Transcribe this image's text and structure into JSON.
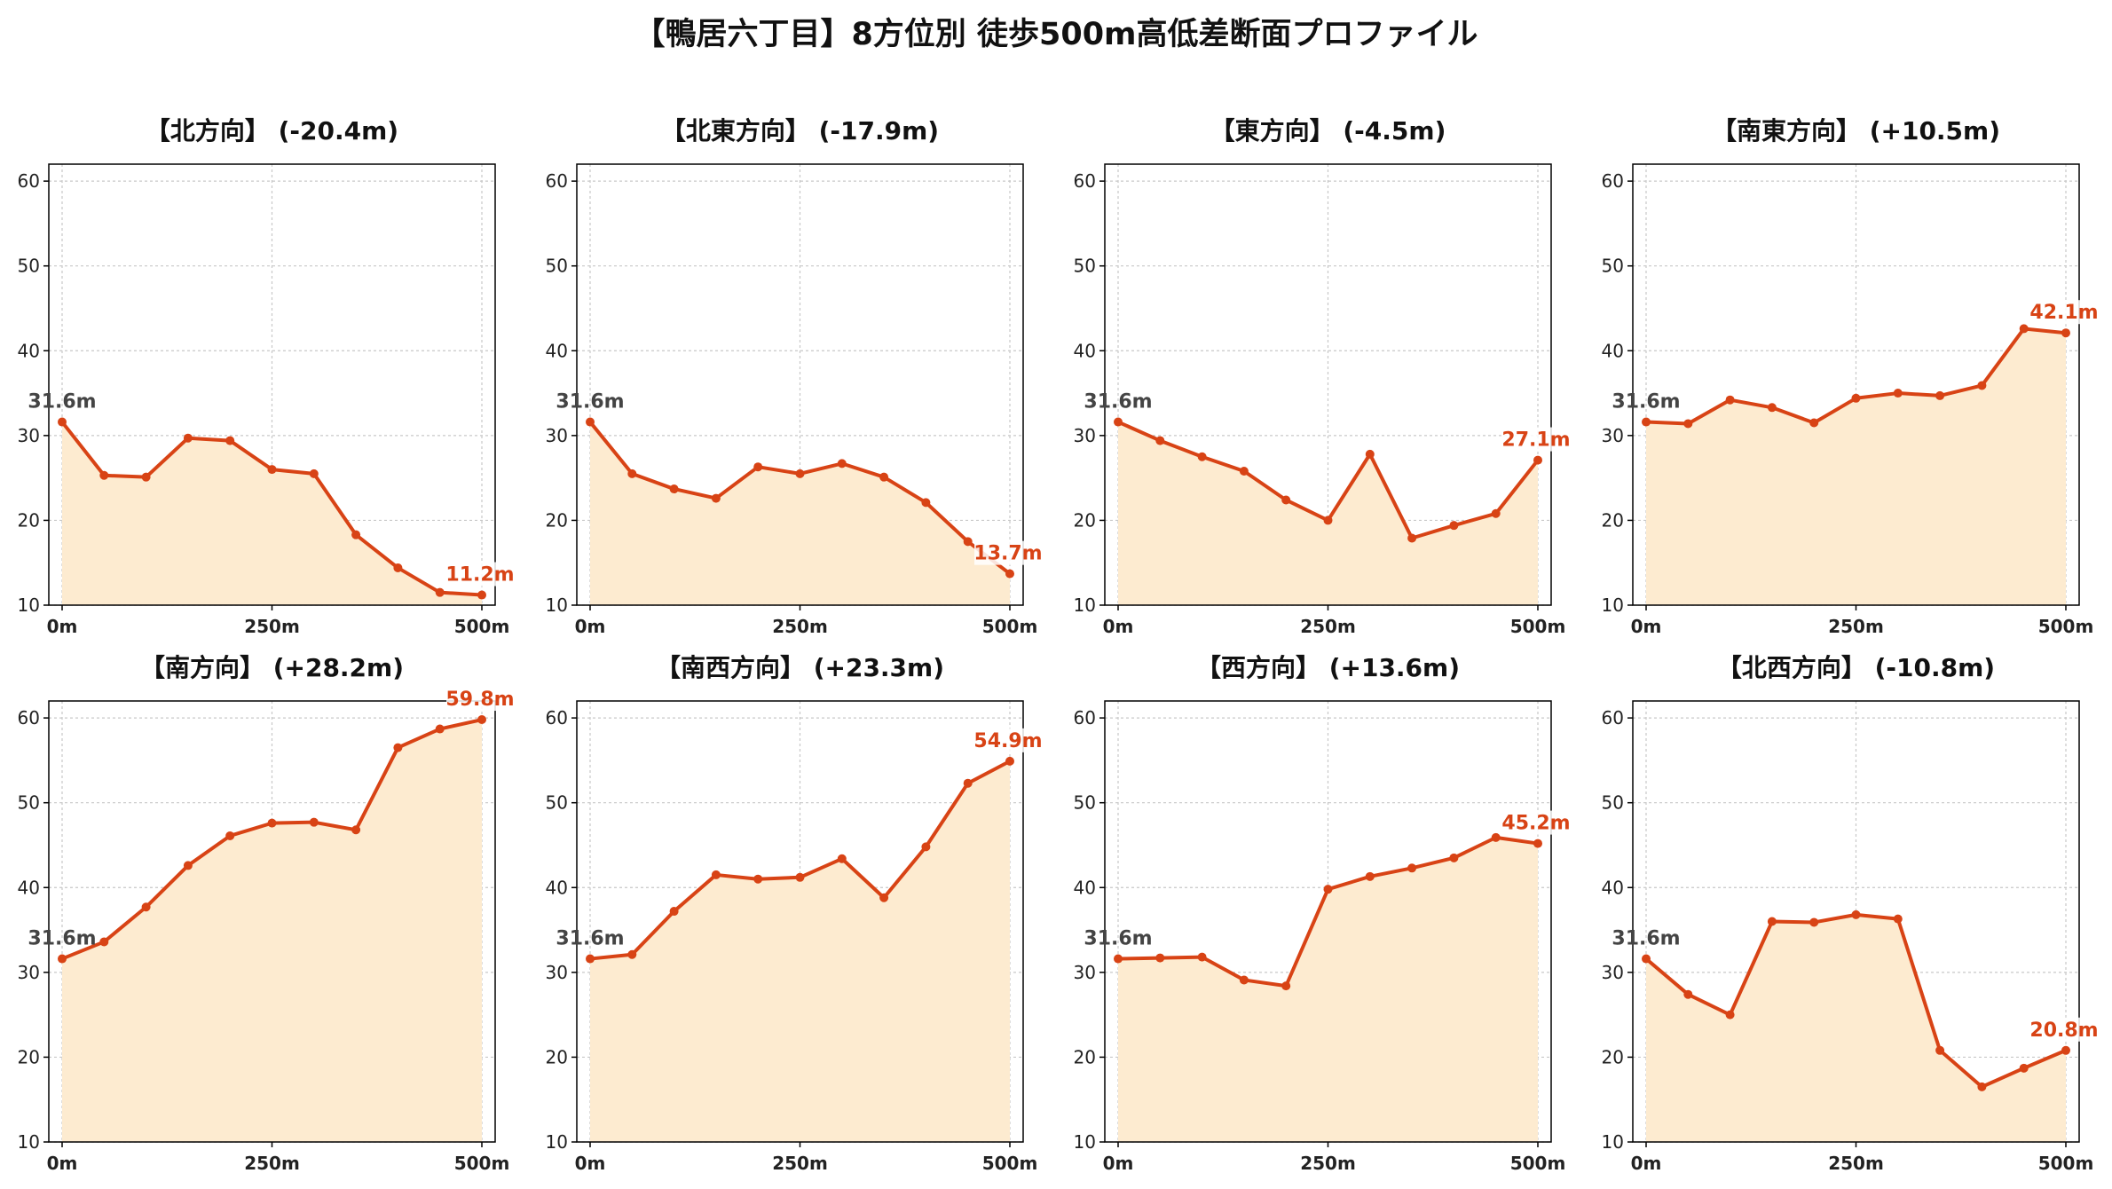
{
  "title": "【鴨居六丁目】8方位別 徒歩500m高低差断面プロファイル",
  "colors": {
    "line": "#d84315",
    "fill": "#fdebd0",
    "grid": "#c8c8c8",
    "start_label": "#444444"
  },
  "chart_data": [
    {
      "type": "area",
      "title": "【北方向】 (-20.4m)",
      "x": [
        0,
        50,
        100,
        150,
        200,
        250,
        300,
        350,
        400,
        450,
        500
      ],
      "values": [
        31.6,
        25.3,
        25.1,
        29.7,
        29.4,
        26.0,
        25.5,
        18.3,
        14.4,
        11.5,
        11.2
      ],
      "xticks": [
        "0m",
        "250m",
        "500m"
      ],
      "yticks": [
        10,
        20,
        30,
        40,
        50,
        60
      ],
      "ylim": [
        10,
        62
      ],
      "xlim": [
        0,
        500
      ],
      "start_label": "31.6m",
      "end_label": "11.2m",
      "grid": true
    },
    {
      "type": "area",
      "title": "【北東方向】 (-17.9m)",
      "x": [
        0,
        50,
        100,
        150,
        200,
        250,
        300,
        350,
        400,
        450,
        500
      ],
      "values": [
        31.6,
        25.5,
        23.7,
        22.6,
        26.3,
        25.5,
        26.7,
        25.1,
        22.1,
        17.5,
        13.7
      ],
      "xticks": [
        "0m",
        "250m",
        "500m"
      ],
      "yticks": [
        10,
        20,
        30,
        40,
        50,
        60
      ],
      "ylim": [
        10,
        62
      ],
      "xlim": [
        0,
        500
      ],
      "start_label": "31.6m",
      "end_label": "13.7m",
      "grid": true
    },
    {
      "type": "area",
      "title": "【東方向】 (-4.5m)",
      "x": [
        0,
        50,
        100,
        150,
        200,
        250,
        300,
        350,
        400,
        450,
        500
      ],
      "values": [
        31.6,
        29.4,
        27.5,
        25.8,
        22.4,
        20.0,
        27.8,
        17.9,
        19.4,
        20.8,
        27.1
      ],
      "xticks": [
        "0m",
        "250m",
        "500m"
      ],
      "yticks": [
        10,
        20,
        30,
        40,
        50,
        60
      ],
      "ylim": [
        10,
        62
      ],
      "xlim": [
        0,
        500
      ],
      "start_label": "31.6m",
      "end_label": "27.1m",
      "grid": true
    },
    {
      "type": "area",
      "title": "【南東方向】 (+10.5m)",
      "x": [
        0,
        50,
        100,
        150,
        200,
        250,
        300,
        350,
        400,
        450,
        500
      ],
      "values": [
        31.6,
        31.4,
        34.2,
        33.3,
        31.5,
        34.4,
        35.0,
        34.7,
        35.9,
        42.6,
        42.1
      ],
      "xticks": [
        "0m",
        "250m",
        "500m"
      ],
      "yticks": [
        10,
        20,
        30,
        40,
        50,
        60
      ],
      "ylim": [
        10,
        62
      ],
      "xlim": [
        0,
        500
      ],
      "start_label": "31.6m",
      "end_label": "42.1m",
      "grid": true
    },
    {
      "type": "area",
      "title": "【南方向】 (+28.2m)",
      "x": [
        0,
        50,
        100,
        150,
        200,
        250,
        300,
        350,
        400,
        450,
        500
      ],
      "values": [
        31.6,
        33.6,
        37.7,
        42.6,
        46.1,
        47.6,
        47.7,
        46.8,
        56.5,
        58.7,
        59.8
      ],
      "xticks": [
        "0m",
        "250m",
        "500m"
      ],
      "yticks": [
        10,
        20,
        30,
        40,
        50,
        60
      ],
      "ylim": [
        10,
        62
      ],
      "xlim": [
        0,
        500
      ],
      "start_label": "31.6m",
      "end_label": "59.8m",
      "grid": true
    },
    {
      "type": "area",
      "title": "【南西方向】 (+23.3m)",
      "x": [
        0,
        50,
        100,
        150,
        200,
        250,
        300,
        350,
        400,
        450,
        500
      ],
      "values": [
        31.6,
        32.1,
        37.2,
        41.5,
        41.0,
        41.2,
        43.4,
        38.8,
        44.8,
        52.3,
        54.9
      ],
      "xticks": [
        "0m",
        "250m",
        "500m"
      ],
      "yticks": [
        10,
        20,
        30,
        40,
        50,
        60
      ],
      "ylim": [
        10,
        62
      ],
      "xlim": [
        0,
        500
      ],
      "start_label": "31.6m",
      "end_label": "54.9m",
      "grid": true
    },
    {
      "type": "area",
      "title": "【西方向】 (+13.6m)",
      "x": [
        0,
        50,
        100,
        150,
        200,
        250,
        300,
        350,
        400,
        450,
        500
      ],
      "values": [
        31.6,
        31.7,
        31.8,
        29.1,
        28.4,
        39.8,
        41.3,
        42.3,
        43.5,
        45.9,
        45.2
      ],
      "xticks": [
        "0m",
        "250m",
        "500m"
      ],
      "yticks": [
        10,
        20,
        30,
        40,
        50,
        60
      ],
      "ylim": [
        10,
        62
      ],
      "xlim": [
        0,
        500
      ],
      "start_label": "31.6m",
      "end_label": "45.2m",
      "grid": true
    },
    {
      "type": "area",
      "title": "【北西方向】 (-10.8m)",
      "x": [
        0,
        50,
        100,
        150,
        200,
        250,
        300,
        350,
        400,
        450,
        500
      ],
      "values": [
        31.6,
        27.4,
        25.0,
        36.0,
        35.9,
        36.8,
        36.3,
        20.8,
        16.5,
        18.7,
        20.8
      ],
      "xticks": [
        "0m",
        "250m",
        "500m"
      ],
      "yticks": [
        10,
        20,
        30,
        40,
        50,
        60
      ],
      "ylim": [
        10,
        62
      ],
      "xlim": [
        0,
        500
      ],
      "start_label": "31.6m",
      "end_label": "20.8m",
      "grid": true
    }
  ]
}
